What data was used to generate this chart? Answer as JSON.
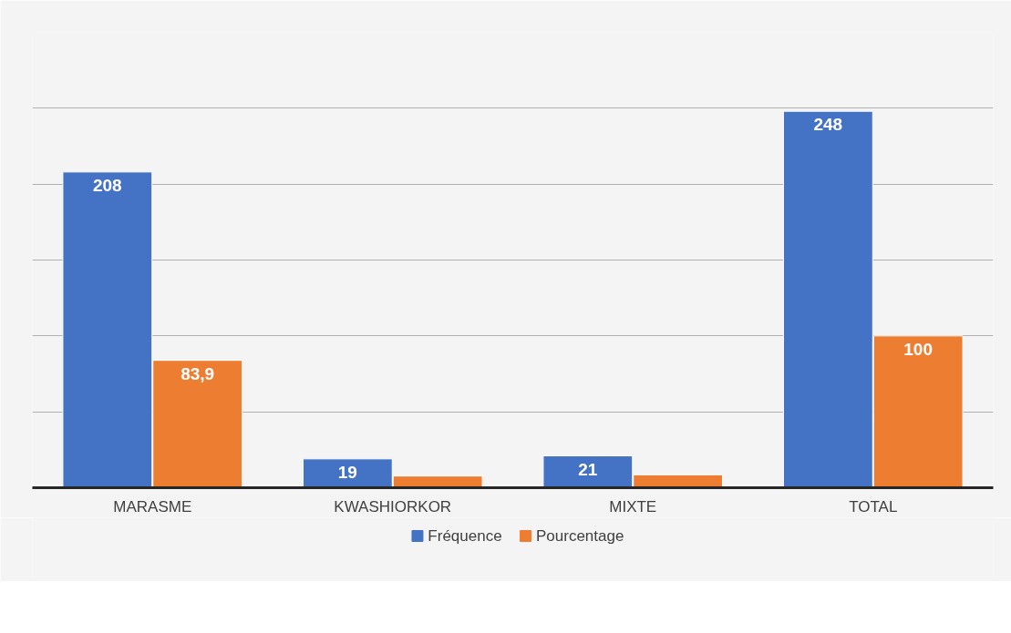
{
  "chart_data": {
    "type": "bar",
    "categories": [
      "MARASME",
      "KWASHIORKOR",
      "MIXTE",
      "TOTAL"
    ],
    "series": [
      {
        "name": "Fréquence",
        "color": "#4472c4",
        "values": [
          208,
          19,
          21,
          248
        ],
        "value_labels": [
          "208",
          "19",
          "21",
          "248"
        ]
      },
      {
        "name": "Pourcentage",
        "color": "#ed7d31",
        "values": [
          83.9,
          7.7,
          8.5,
          100
        ],
        "value_labels": [
          "83,9",
          null,
          null,
          "100"
        ]
      }
    ],
    "ylim": [
      0,
      300
    ],
    "yticks": [
      {
        "value": 0,
        "label": null
      },
      {
        "value": 50,
        "label": null
      },
      {
        "value": 100,
        "label": null
      },
      {
        "value": 150,
        "label": null
      },
      {
        "value": 200,
        "label": null
      },
      {
        "value": 250,
        "label": null
      },
      {
        "value": 300,
        "label": null
      }
    ],
    "tick_labels": "x",
    "grid": "y",
    "legend": "bottom"
  }
}
